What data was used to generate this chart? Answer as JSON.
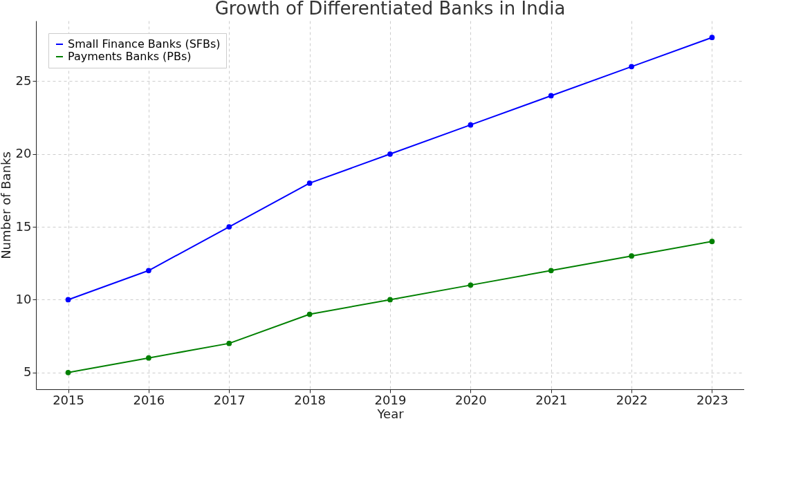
{
  "chart_data": {
    "type": "line",
    "title": "Growth of Differentiated Banks in India",
    "xlabel": "Year",
    "ylabel": "Number of Banks",
    "x": [
      2015,
      2016,
      2017,
      2018,
      2019,
      2020,
      2021,
      2022,
      2023
    ],
    "series": [
      {
        "name": "Small Finance Banks (SFBs)",
        "color": "#0000ff",
        "values": [
          10,
          12,
          15,
          18,
          20,
          22,
          24,
          26,
          28
        ]
      },
      {
        "name": "Payments Banks (PBs)",
        "color": "#008000",
        "values": [
          5,
          6,
          7,
          9,
          10,
          11,
          12,
          13,
          14
        ]
      }
    ],
    "xlim": [
      2014.6,
      2023.4
    ],
    "xticks": [
      2015,
      2016,
      2017,
      2018,
      2019,
      2020,
      2021,
      2022,
      2023
    ],
    "ylim": [
      3.85,
      29.15
    ],
    "yticks": [
      5,
      10,
      15,
      20,
      25
    ],
    "grid": true,
    "legend": "top left",
    "marker": "circle",
    "line_style": "solid"
  }
}
